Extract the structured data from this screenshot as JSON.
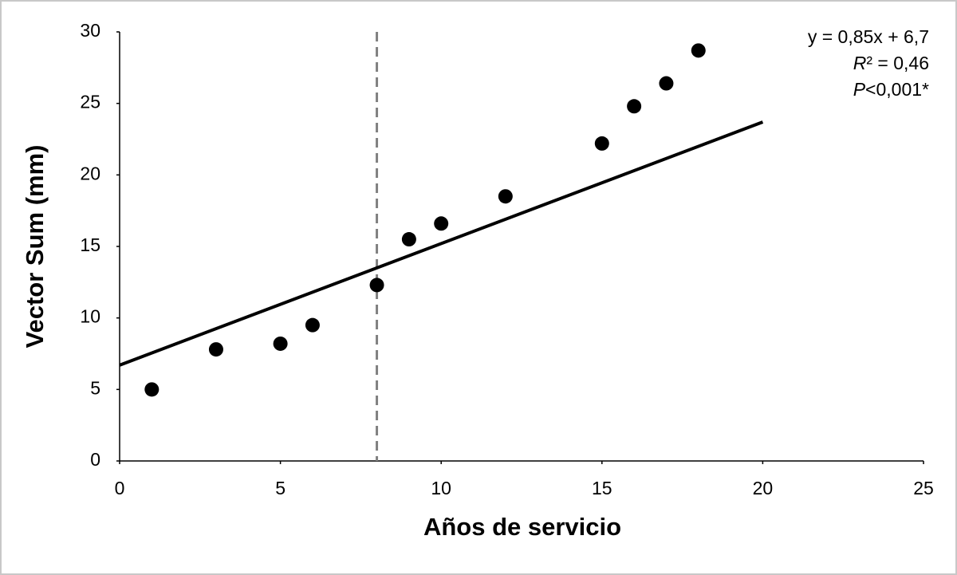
{
  "chart_data": {
    "type": "scatter",
    "x_label": "Años de servicio",
    "y_label": "Vector Sum (mm)",
    "x": [
      1,
      3,
      5,
      6,
      8,
      9,
      10,
      12,
      15,
      16,
      17,
      18
    ],
    "values": [
      5.0,
      7.8,
      8.2,
      9.5,
      12.3,
      15.5,
      16.6,
      18.5,
      22.2,
      24.8,
      26.4,
      28.7
    ],
    "color": "#000000",
    "trendline": {
      "x": [
        0,
        20
      ],
      "values": [
        6.7,
        23.7
      ],
      "color": "#000000"
    },
    "vline": {
      "x": 8,
      "color": "#808080"
    },
    "annotations": [
      {
        "text": "y = 0,85x + 6,7"
      },
      {
        "italic": "R",
        "text": "² = 0,46"
      },
      {
        "italic": "P",
        "text": "<0,001*"
      }
    ],
    "xlim": [
      0,
      25
    ],
    "xticks": [
      0,
      5,
      10,
      15,
      20,
      25
    ],
    "ylim": [
      0,
      30
    ],
    "yticks": [
      0,
      5,
      10,
      15,
      20,
      25,
      30
    ]
  }
}
